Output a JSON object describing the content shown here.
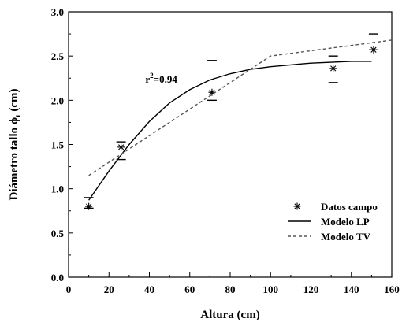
{
  "chart_data": {
    "type": "scatter",
    "xlabel": "Altura (cm)",
    "ylabel_main": "Diámetro tallo ",
    "ylabel_symbol": "ϕ",
    "ylabel_sub": "t",
    "ylabel_unit": " (cm)",
    "xlim": [
      0,
      160
    ],
    "ylim": [
      0.0,
      3.0
    ],
    "xticks": [
      "0",
      "20",
      "40",
      "60",
      "80",
      "100",
      "120",
      "140",
      "160"
    ],
    "yticks": [
      "0.0",
      "0.5",
      "1.0",
      "1.5",
      "2.0",
      "2.5",
      "3.0"
    ],
    "grid": false,
    "annotation": {
      "prefix": "r",
      "sup": "2",
      "suffix": "=0.94",
      "x": 38,
      "y": 2.2
    },
    "legend": {
      "placement": "bottom-right",
      "entries": [
        {
          "name": "Datos campo",
          "style": "marker"
        },
        {
          "name": "Modelo LP",
          "style": "solid"
        },
        {
          "name": "Modelo TV",
          "style": "dashed"
        }
      ]
    },
    "series": [
      {
        "name": "Datos campo",
        "kind": "points",
        "x": [
          10,
          26,
          71,
          131,
          151
        ],
        "y": [
          0.8,
          1.47,
          2.09,
          2.36,
          2.57
        ],
        "err_low": [
          0.78,
          1.33,
          2.0,
          2.2,
          2.57
        ],
        "err_high": [
          0.9,
          1.53,
          2.45,
          2.5,
          2.75
        ]
      },
      {
        "name": "Modelo LP",
        "kind": "line",
        "x": [
          10,
          20,
          30,
          40,
          50,
          60,
          70,
          80,
          90,
          100,
          110,
          120,
          130,
          140,
          150
        ],
        "y": [
          0.87,
          1.2,
          1.5,
          1.76,
          1.97,
          2.12,
          2.23,
          2.3,
          2.35,
          2.38,
          2.4,
          2.42,
          2.43,
          2.44,
          2.44
        ]
      },
      {
        "name": "Modelo TV",
        "kind": "dashed",
        "x": [
          10,
          100,
          160
        ],
        "y": [
          1.15,
          2.5,
          2.68
        ]
      }
    ]
  }
}
